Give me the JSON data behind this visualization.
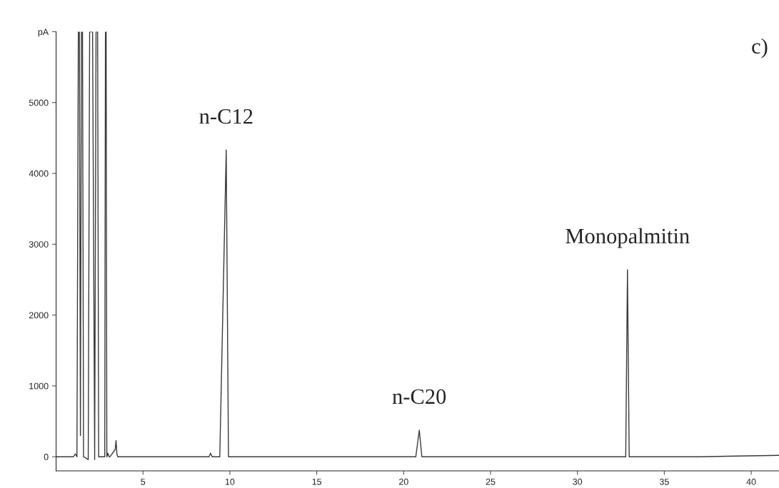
{
  "chart_data": {
    "type": "line",
    "x": [
      0,
      1.0,
      1.11,
      1.2,
      1.28,
      1.34,
      1.4,
      1.46,
      1.52,
      1.58,
      1.85,
      1.93,
      2.1,
      2.22,
      2.3,
      2.39,
      2.45,
      2.8,
      2.84,
      2.88,
      2.92,
      2.98,
      3.05,
      3.1,
      3.4,
      3.45,
      3.5,
      3.55,
      3.65,
      8.8,
      8.89,
      8.98,
      9.42,
      9.79,
      9.92,
      20.7,
      20.9,
      21.05,
      32.78,
      32.88,
      32.98,
      37.0,
      41.6
    ],
    "series": [
      {
        "color": "#3a3a3a",
        "values": [
          0,
          0,
          40,
          0,
          6000,
          6000,
          300,
          6000,
          6000,
          0,
          -40,
          6000,
          6000,
          -40,
          6000,
          6000,
          0,
          0,
          6000,
          6000,
          0,
          50,
          0,
          0,
          100,
          230,
          40,
          0,
          0,
          0,
          50,
          0,
          0,
          4330,
          0,
          0,
          375,
          0,
          0,
          2640,
          0,
          0,
          20
        ]
      }
    ],
    "xlim": [
      0,
      41.6
    ],
    "ylim": [
      -200,
      6000
    ],
    "xticks": [
      5,
      10,
      15,
      20,
      25,
      30,
      35,
      40
    ],
    "yticks": [
      0,
      1000,
      2000,
      3000,
      4000,
      5000,
      {
        "value": 6000,
        "label": "pA"
      }
    ],
    "annotations": [
      {
        "text": "n-C12",
        "x": 9.79,
        "y": 4330
      },
      {
        "text": "n-C20",
        "x": 20.9,
        "y": 375
      },
      {
        "text": "Monopalmitin",
        "x": 32.88,
        "y": 2640
      },
      "c)"
    ],
    "grid": false,
    "legend": false
  }
}
